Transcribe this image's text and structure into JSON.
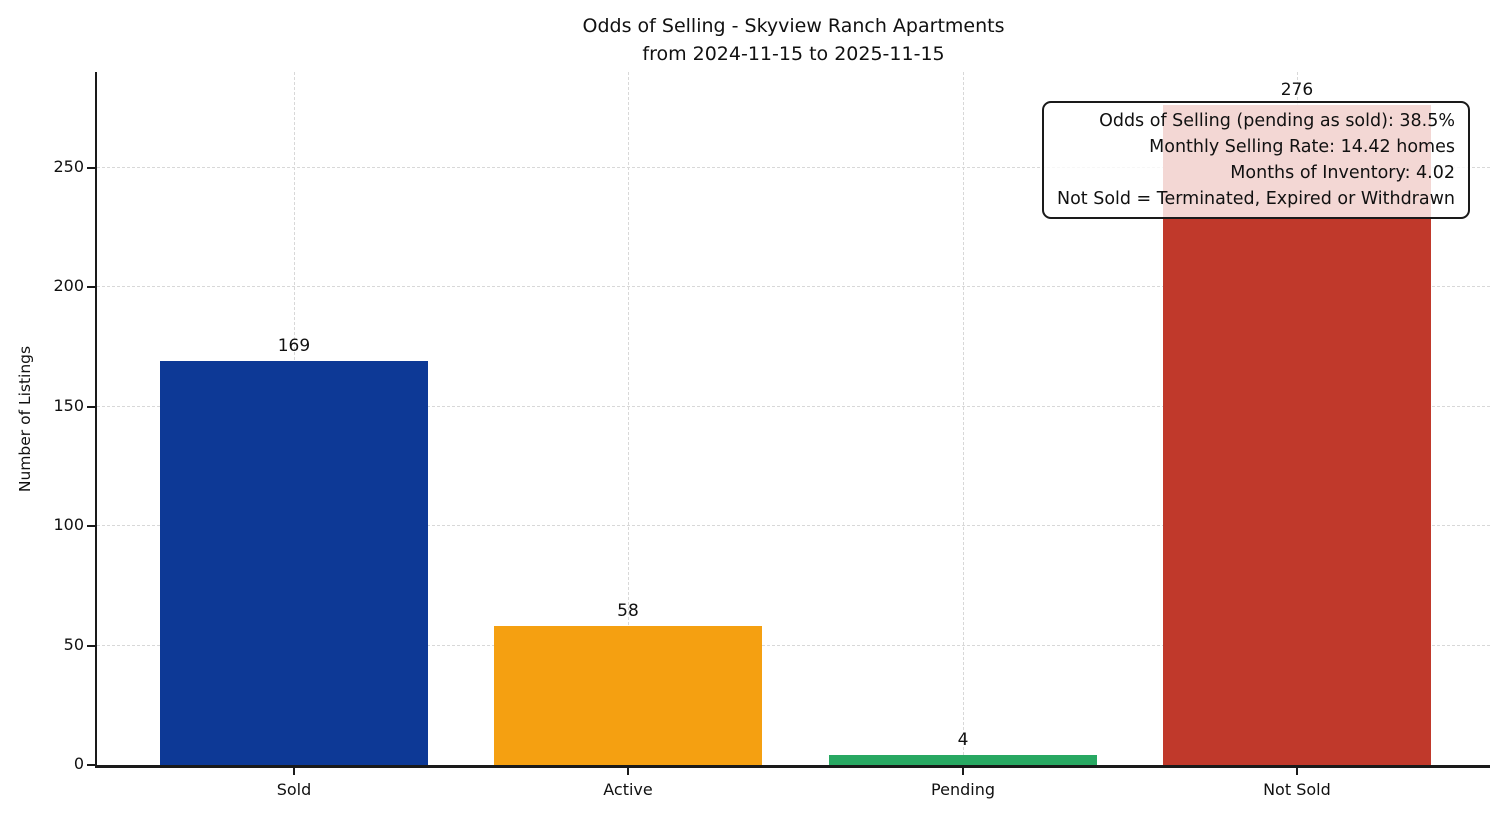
{
  "chart_data": {
    "type": "bar",
    "title_line1": "Odds of Selling - Skyview Ranch Apartments",
    "title_line2": "from 2024-11-15 to 2025-11-15",
    "categories": [
      "Sold",
      "Active",
      "Pending",
      "Not Sold"
    ],
    "values": [
      169,
      58,
      4,
      276
    ],
    "bar_labels": [
      "169",
      "58",
      "4",
      "276"
    ],
    "bar_colors": [
      "#0d3996",
      "#f5a011",
      "#28a862",
      "#c0392b"
    ],
    "xlabel": "",
    "ylabel": "Number of Listings",
    "ylim": [
      0,
      290
    ],
    "yticks": [
      0,
      50,
      100,
      150,
      200,
      250
    ],
    "grid": "dashed horizontal and vertical gridlines, light gray",
    "legend": "none",
    "annotations": [
      "Odds of Selling (pending as sold): 38.5%",
      "Monthly Selling Rate: 14.42 homes",
      "Months of Inventory: 4.02",
      "Not Sold = Terminated, Expired or Withdrawn"
    ]
  }
}
